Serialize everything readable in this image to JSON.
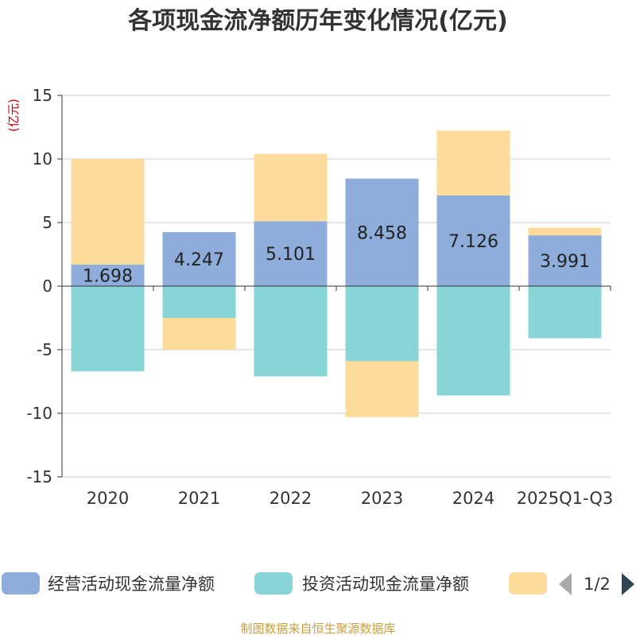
{
  "chart_data": {
    "type": "bar",
    "stacked": true,
    "title": "各项现金流净额历年变化情况(亿元)",
    "ylabel": "(亿元)",
    "xlabel": "",
    "ylim": [
      -15,
      15
    ],
    "yticks": [
      15,
      10,
      5,
      0,
      -5,
      -10,
      -15
    ],
    "categories": [
      "2020",
      "2021",
      "2022",
      "2023",
      "2024",
      "2025Q1-Q3"
    ],
    "series": [
      {
        "name": "经营活动现金流量净额",
        "color": "#8eaddb",
        "values": [
          1.698,
          4.247,
          5.101,
          8.458,
          7.126,
          3.991
        ],
        "labels": [
          "1.698",
          "4.247",
          "5.101",
          "8.458",
          "7.126",
          "3.991"
        ]
      },
      {
        "name": "投资活动现金流量净额",
        "color": "#88d5d8",
        "values": [
          -6.7,
          -2.5,
          -7.1,
          -5.9,
          -8.6,
          -4.1
        ]
      },
      {
        "name": "",
        "color": "#fddb9b",
        "values": [
          8.3,
          -2.5,
          5.3,
          -4.4,
          5.1,
          0.6
        ]
      }
    ],
    "legend": {
      "position": "bottom",
      "page": "1/2"
    },
    "source": "制图数据来自恒生聚源数据库",
    "colors": {
      "title": "#333333",
      "ylabel": "#cc0000",
      "grid": "#cccccc",
      "axis": "#333333",
      "source": "#c8a040",
      "pager": "#2f4554",
      "pager_disabled": "#aaaaaa"
    }
  }
}
